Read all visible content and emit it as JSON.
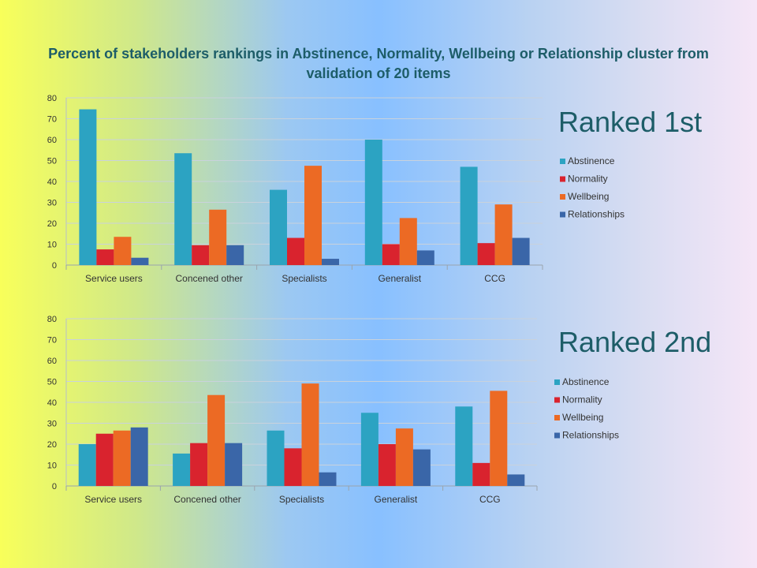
{
  "title": "Percent of stakeholders rankings in Abstinence, Normality, Wellbeing or Relationship cluster from validation of 20 items",
  "colors": {
    "Abstinence": "#2ca3c2",
    "Normality": "#d9232e",
    "Wellbeing": "#ec6a24",
    "Relationships": "#3a66a8",
    "grid": "#c9d2dc",
    "tick": "#333333"
  },
  "chart_data": [
    {
      "type": "bar",
      "label": "Ranked 1st",
      "categories": [
        "Service users",
        "Concened other",
        "Specialists",
        "Generalist",
        "CCG"
      ],
      "series": [
        {
          "name": "Abstinence",
          "values": [
            74.5,
            53.5,
            36,
            60,
            47
          ]
        },
        {
          "name": "Normality",
          "values": [
            7.5,
            9.5,
            13,
            10,
            10.5
          ]
        },
        {
          "name": "Wellbeing",
          "values": [
            13.5,
            26.5,
            47.5,
            22.5,
            29
          ]
        },
        {
          "name": "Relationships",
          "values": [
            3.5,
            9.5,
            3,
            7,
            13
          ]
        }
      ],
      "ylim": [
        0,
        80
      ],
      "yticks": [
        0,
        10,
        20,
        30,
        40,
        50,
        60,
        70,
        80
      ],
      "grid": true,
      "legend": "right"
    },
    {
      "type": "bar",
      "label": "Ranked 2nd",
      "categories": [
        "Service users",
        "Concened other",
        "Specialists",
        "Generalist",
        "CCG"
      ],
      "series": [
        {
          "name": "Abstinence",
          "values": [
            20,
            15.5,
            26.5,
            35,
            38
          ]
        },
        {
          "name": "Normality",
          "values": [
            25,
            20.5,
            18,
            20,
            11
          ]
        },
        {
          "name": "Wellbeing",
          "values": [
            26.5,
            43.5,
            49,
            27.5,
            45.5
          ]
        },
        {
          "name": "Relationships",
          "values": [
            28,
            20.5,
            6.5,
            17.5,
            5.5
          ]
        }
      ],
      "ylim": [
        0,
        80
      ],
      "yticks": [
        0,
        10,
        20,
        30,
        40,
        50,
        60,
        70,
        80
      ],
      "grid": true,
      "legend": "right"
    }
  ]
}
